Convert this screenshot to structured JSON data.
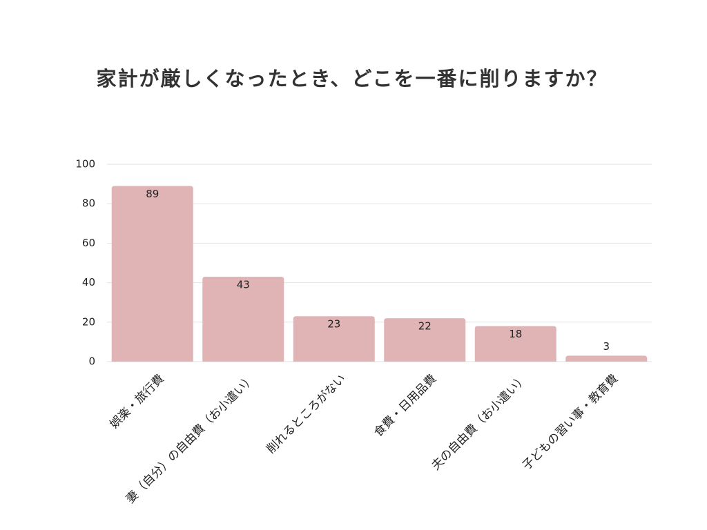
{
  "chart_data": {
    "type": "bar",
    "title": "家計が厳しくなったとき、どこを一番に削りますか？",
    "categories": [
      "娯楽・旅行費",
      "妻（自分）の自由費（お小遣い）",
      "削れるところがない",
      "食費・日用品費",
      "夫の自由費（お小遣い）",
      "子どもの習い事・教育費"
    ],
    "values": [
      89,
      43,
      23,
      22,
      18,
      3
    ],
    "color": "#e0b4b5",
    "ylim": [
      0,
      100
    ],
    "yticks": [
      0,
      20,
      40,
      60,
      80,
      100
    ],
    "grid": true
  }
}
